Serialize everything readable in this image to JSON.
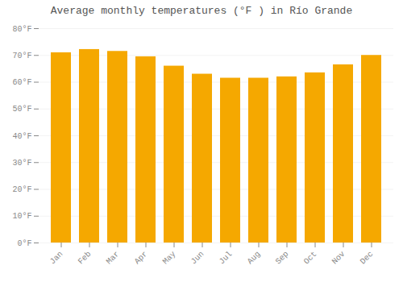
{
  "chart_data": {
    "type": "bar",
    "title": "Average monthly temperatures (°F ) in Río Grande",
    "categories": [
      "Jan",
      "Feb",
      "Mar",
      "Apr",
      "May",
      "Jun",
      "Jul",
      "Aug",
      "Sep",
      "Oct",
      "Nov",
      "Dec"
    ],
    "values": [
      71.0,
      72.2,
      71.5,
      69.5,
      66.0,
      63.0,
      61.5,
      61.5,
      62.0,
      63.5,
      66.5,
      70.0
    ],
    "color": "#F5A800",
    "ylim": [
      0,
      80
    ],
    "yticks": [
      {
        "value": 0,
        "label": "0°F"
      },
      {
        "value": 10,
        "label": "10°F"
      },
      {
        "value": 20,
        "label": "20°F"
      },
      {
        "value": 30,
        "label": "30°F"
      },
      {
        "value": 40,
        "label": "40°F"
      },
      {
        "value": 50,
        "label": "50°F"
      },
      {
        "value": 60,
        "label": "60°F"
      },
      {
        "value": 70,
        "label": "70°F"
      },
      {
        "value": 80,
        "label": "80°F"
      }
    ],
    "grid": true
  }
}
